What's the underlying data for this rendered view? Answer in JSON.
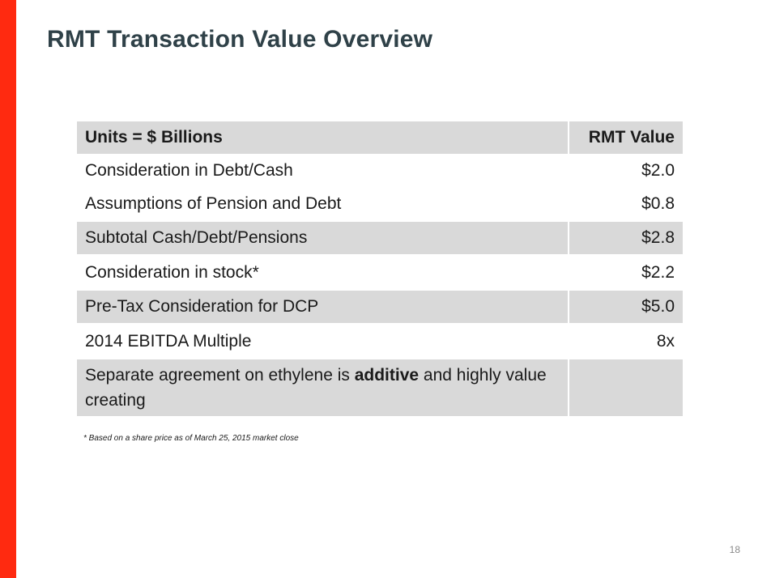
{
  "slide": {
    "title": "RMT Transaction Value Overview",
    "accent_color": "#ff2a10",
    "page_number": "18",
    "footnote": "* Based on a share price as of March 25, 2015 market close"
  },
  "table": {
    "header": {
      "label": "Units = $ Billions",
      "value": "RMT Value"
    },
    "rows": [
      {
        "label": "Consideration in Debt/Cash",
        "value": "$2.0"
      },
      {
        "label": "Assumptions of Pension and Debt",
        "value": "$0.8"
      },
      {
        "label": "Subtotal Cash/Debt/Pensions",
        "value": "$2.8"
      },
      {
        "label": "Consideration in stock*",
        "value": "$2.2"
      },
      {
        "label": "Pre-Tax Consideration for DCP",
        "value": "$5.0"
      },
      {
        "label": "2014 EBITDA Multiple",
        "value": "8x"
      }
    ],
    "note_row": {
      "text_before": "Separate agreement on ethylene is ",
      "text_bold": "additive",
      "text_after": " and highly value creating",
      "value": ""
    }
  }
}
